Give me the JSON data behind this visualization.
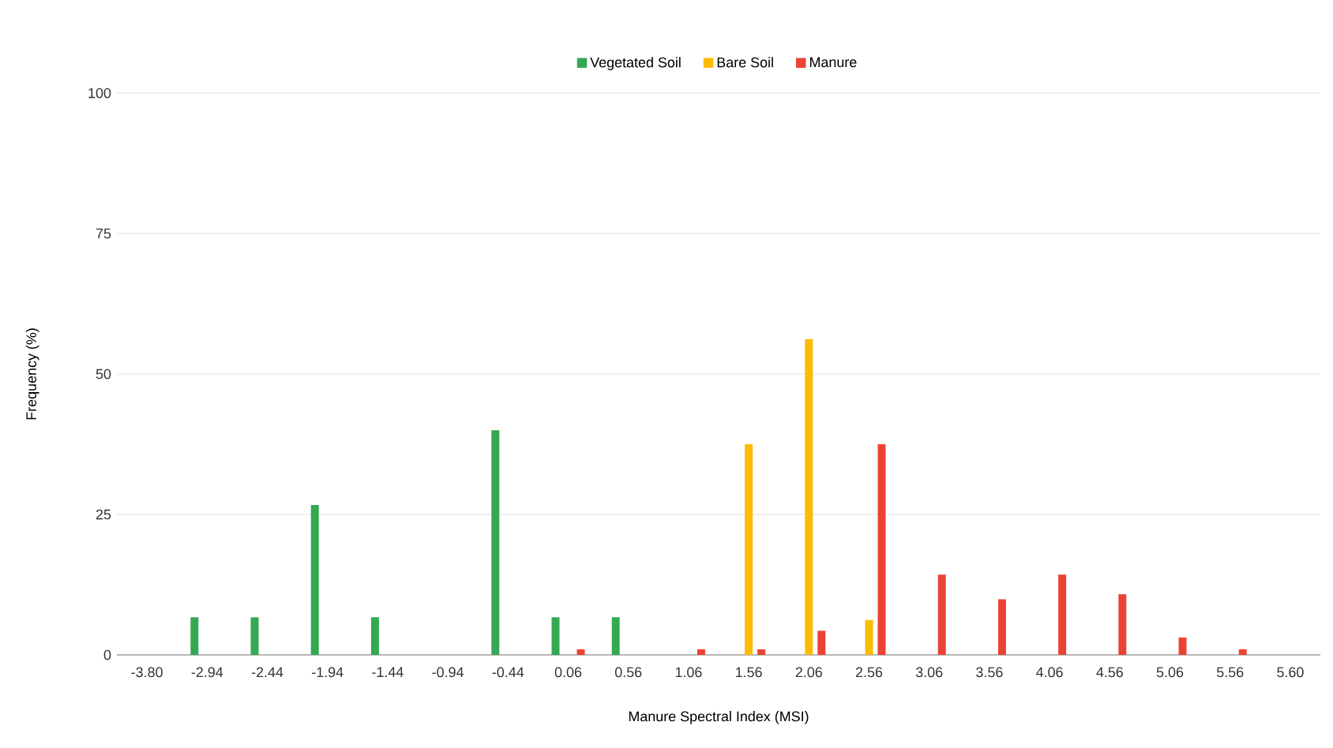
{
  "chart_data": {
    "type": "bar",
    "xlabel": "Manure Spectral Index (MSI)",
    "ylabel": "Frequency (%)",
    "categories": [
      "-3.80",
      "-2.94",
      "-2.44",
      "-1.94",
      "-1.44",
      "-0.94",
      "-0.44",
      "0.06",
      "0.56",
      "1.06",
      "1.56",
      "2.06",
      "2.56",
      "3.06",
      "3.56",
      "4.06",
      "4.56",
      "5.06",
      "5.56",
      "5.60"
    ],
    "series": [
      {
        "name": "Vegetated Soil",
        "color": "#34a853",
        "values": [
          null,
          6.7,
          6.7,
          26.7,
          6.7,
          null,
          40,
          6.7,
          6.7,
          null,
          null,
          null,
          null,
          null,
          null,
          null,
          null,
          null,
          null,
          null
        ]
      },
      {
        "name": "Bare Soil",
        "color": "#fbbc04",
        "values": [
          null,
          null,
          null,
          null,
          null,
          null,
          null,
          null,
          null,
          null,
          37.5,
          56.2,
          6.2,
          null,
          null,
          null,
          null,
          null,
          null,
          null
        ]
      },
      {
        "name": "Manure",
        "color": "#ea4335",
        "values": [
          null,
          null,
          null,
          null,
          null,
          null,
          null,
          1,
          null,
          1,
          1,
          4.3,
          37.5,
          14.3,
          9.9,
          14.3,
          10.8,
          3.1,
          1,
          null
        ]
      }
    ],
    "ylim": [
      0,
      100
    ],
    "yticks": [
      0,
      25,
      50,
      75,
      100
    ],
    "grid": "y",
    "legend": "top"
  }
}
